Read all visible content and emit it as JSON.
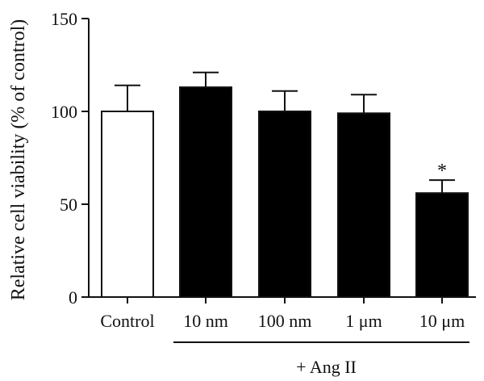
{
  "chart_data": {
    "type": "bar",
    "categories": [
      "Control",
      "10 nm",
      "100 nm",
      "1 μm",
      "10 μm"
    ],
    "values": [
      100,
      113,
      100,
      99,
      56
    ],
    "errors": [
      14,
      8,
      11,
      10,
      7
    ],
    "bar_fills": [
      "#ffffff",
      "#000000",
      "#000000",
      "#000000",
      "#000000"
    ],
    "significance": [
      "",
      "",
      "",
      "",
      "*"
    ],
    "ylabel": "Relative cell viability (% of control)",
    "xlabel": "",
    "ylim": [
      0,
      150
    ],
    "yticks": [
      0,
      50,
      100,
      150
    ],
    "group_label": "+ Ang II",
    "group_span": [
      "10 nm",
      "10 μm"
    ],
    "grid": false
  }
}
